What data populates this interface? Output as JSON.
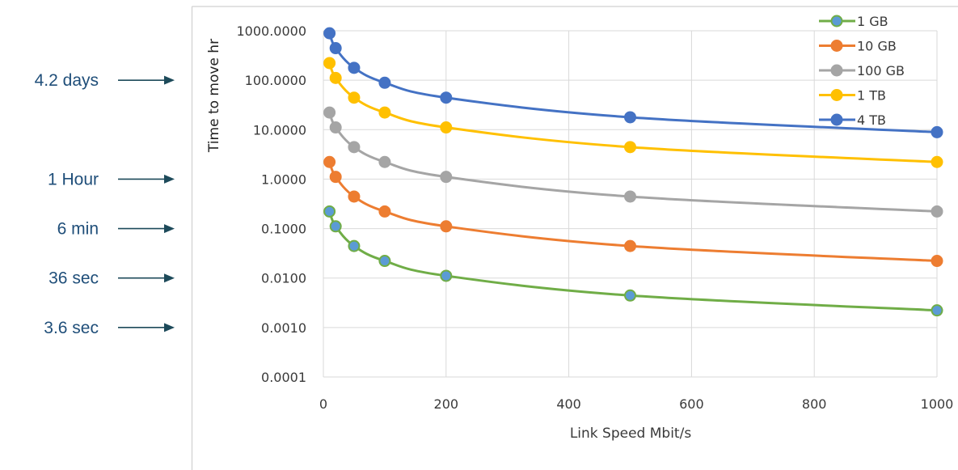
{
  "annotations": [
    {
      "label": "4.2 days",
      "hours": 100
    },
    {
      "label": "1 Hour",
      "hours": 1
    },
    {
      "label": "6 min",
      "hours": 0.1
    },
    {
      "label": "36 sec",
      "hours": 0.01
    },
    {
      "label": "3.6 sec",
      "hours": 0.001
    }
  ],
  "colors": {
    "annotation_text": "#1f4e79",
    "arrow": "#1d4a5a",
    "grid": "#d9d9d9",
    "axis_text": "#3a3a3a",
    "frame": "#d0d0d0"
  },
  "chart_data": {
    "type": "line",
    "title": "",
    "xlabel": "Link Speed Mbit/s",
    "ylabel": "Time to move hr",
    "xlim": [
      0,
      1000
    ],
    "ylim": [
      0.0001,
      1000
    ],
    "yscale": "log",
    "grid": true,
    "legend_position": "top-right",
    "x": [
      10,
      20,
      50,
      100,
      200,
      500,
      1000
    ],
    "xticks": [
      "0",
      "200",
      "400",
      "600",
      "800",
      "1000"
    ],
    "yticks": [
      "0.0001",
      "0.0010",
      "0.0100",
      "0.1000",
      "1.0000",
      "10.0000",
      "100.0000",
      "1000.0000"
    ],
    "series": [
      {
        "name": "1 GB",
        "color": "#70ad47",
        "marker_fill": "#5b9bd5",
        "values": [
          0.222,
          0.111,
          0.0444,
          0.0222,
          0.0111,
          0.00444,
          0.00222
        ]
      },
      {
        "name": "10 GB",
        "color": "#ed7d31",
        "marker_fill": "#ed7d31",
        "values": [
          2.22,
          1.11,
          0.444,
          0.222,
          0.111,
          0.0444,
          0.0222
        ]
      },
      {
        "name": "100 GB",
        "color": "#a5a5a5",
        "marker_fill": "#a5a5a5",
        "values": [
          22.2,
          11.1,
          4.44,
          2.22,
          1.11,
          0.444,
          0.222
        ]
      },
      {
        "name": "1 TB",
        "color": "#ffc000",
        "marker_fill": "#ffc000",
        "values": [
          222,
          111,
          44.4,
          22.2,
          11.1,
          4.44,
          2.22
        ]
      },
      {
        "name": "4 TB",
        "color": "#4472c4",
        "marker_fill": "#4472c4",
        "values": [
          889,
          444,
          178,
          88.9,
          44.4,
          17.8,
          8.89
        ]
      }
    ]
  }
}
